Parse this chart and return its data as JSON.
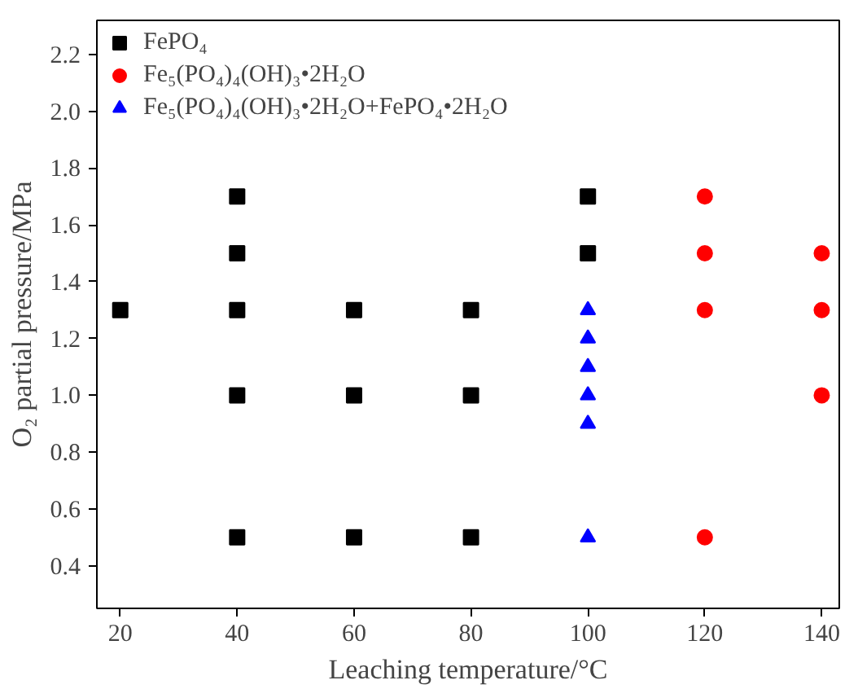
{
  "chart_data": {
    "type": "scatter",
    "xlabel": "Leaching temperature/°C",
    "ylabel": "O₂ partial pressure/MPa",
    "xlim": [
      16,
      143
    ],
    "ylim": [
      0.25,
      2.32
    ],
    "xticks": [
      20,
      40,
      60,
      80,
      100,
      120,
      140
    ],
    "yticks": [
      0.4,
      0.6,
      0.8,
      {
        "value": 1,
        "label": "1.0"
      },
      1.2,
      1.4,
      1.6,
      1.8,
      {
        "value": 2,
        "label": "2.0"
      },
      2.2
    ],
    "grid": false,
    "legend": "top left",
    "series": [
      {
        "name": "FePO₄",
        "color": "#000000",
        "marker": "square",
        "x": [
          20,
          40,
          40,
          40,
          40,
          40,
          60,
          60,
          60,
          80,
          80,
          80,
          100,
          100
        ],
        "values": [
          1.3,
          1.7,
          1.5,
          1.3,
          1.0,
          0.5,
          1.3,
          1.0,
          0.5,
          1.3,
          1.0,
          0.5,
          1.7,
          1.5
        ]
      },
      {
        "name": "Fe₅(PO₄)₄(OH)₃•2H₂O",
        "color": "#ff0000",
        "marker": "circle",
        "x": [
          120,
          120,
          120,
          120,
          140,
          140,
          140
        ],
        "values": [
          1.7,
          1.5,
          1.3,
          0.5,
          1.5,
          1.3,
          1.0
        ]
      },
      {
        "name": "Fe₅(PO₄)₄(OH)₃•2H₂O+FePO₄•2H₂O",
        "color": "#0000ff",
        "marker": "triangle",
        "x": [
          100,
          100,
          100,
          100,
          100,
          100
        ],
        "values": [
          1.3,
          1.2,
          1.1,
          1.0,
          0.9,
          0.5
        ]
      }
    ]
  }
}
